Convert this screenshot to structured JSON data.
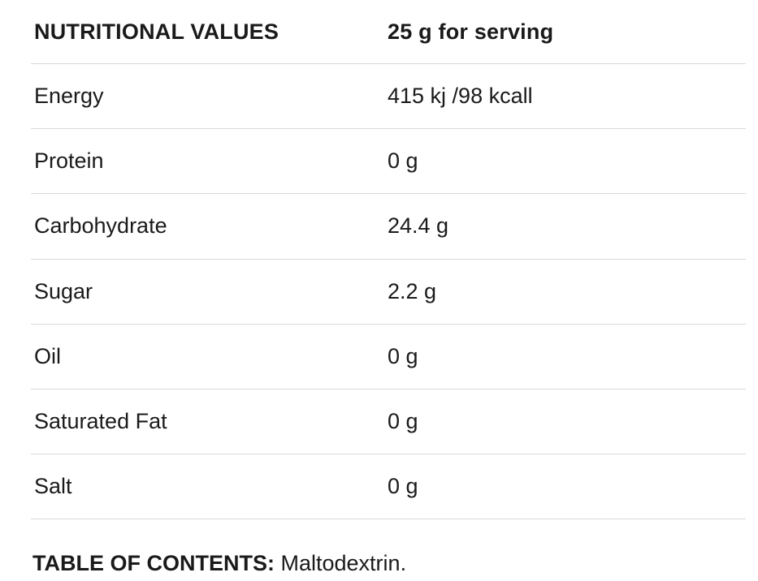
{
  "table": {
    "header": {
      "name": "NUTRITIONAL VALUES",
      "value": "25 g for serving"
    },
    "rows": [
      {
        "name": "Energy",
        "value": "415 kj /98 kcall"
      },
      {
        "name": "Protein",
        "value": "0 g"
      },
      {
        "name": "Carbohydrate",
        "value": "24.4 g"
      },
      {
        "name": "Sugar",
        "value": "2.2 g"
      },
      {
        "name": "Oil",
        "value": "0 g"
      },
      {
        "name": "Saturated Fat",
        "value": "0 g"
      },
      {
        "name": "Salt",
        "value": "0 g"
      }
    ]
  },
  "contents": {
    "label": "TABLE OF CONTENTS:",
    "text": "Maltodextrin."
  }
}
